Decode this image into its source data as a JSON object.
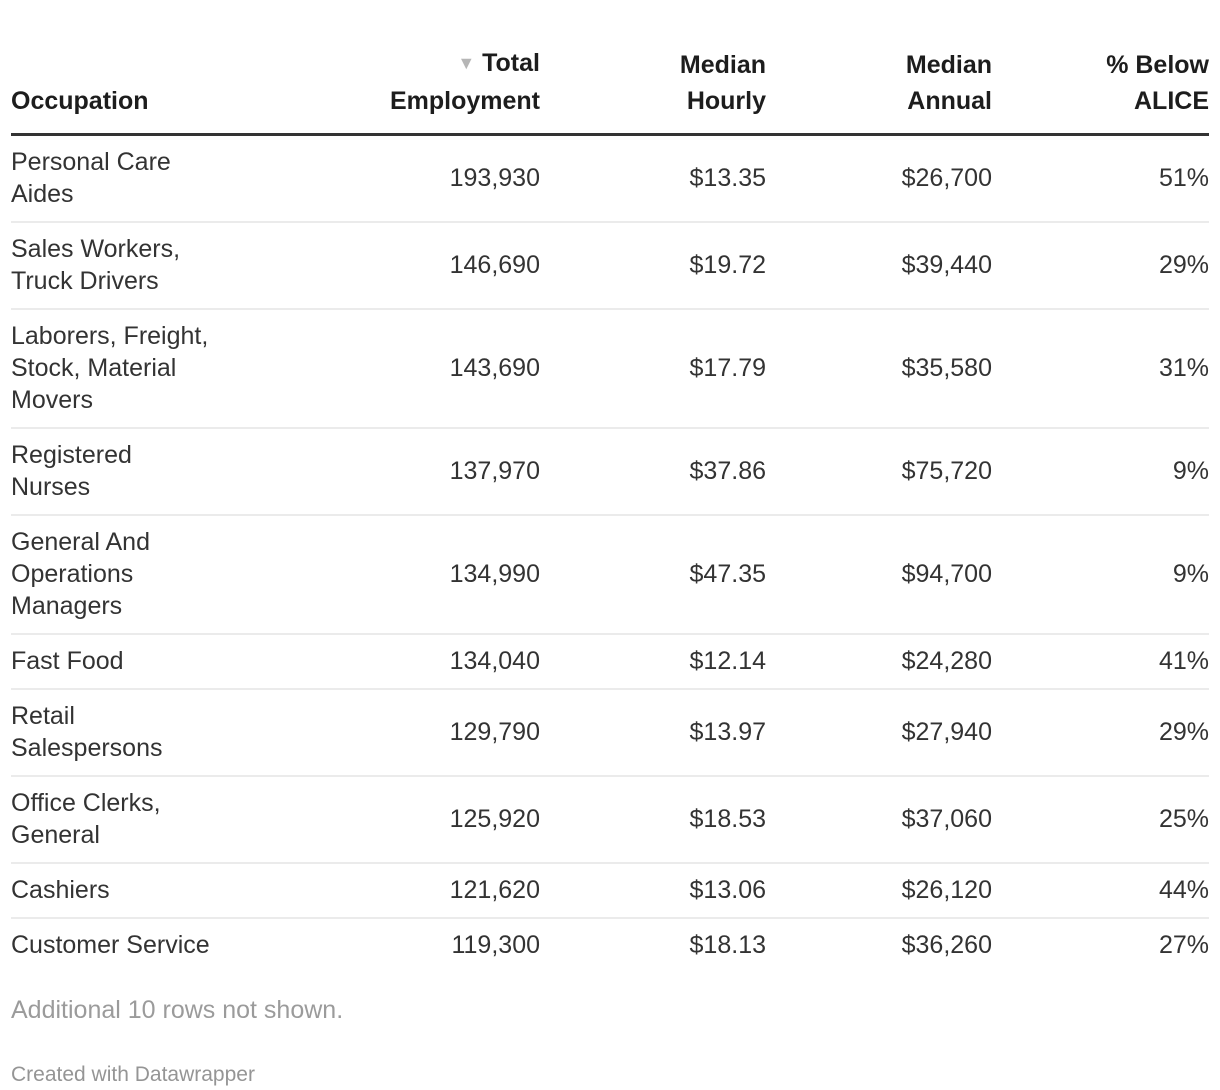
{
  "table": {
    "columns": [
      {
        "key": "occupation",
        "label": "Occupation",
        "align": "left",
        "sorted": false
      },
      {
        "key": "total_employment",
        "label": "Total\nEmployment",
        "align": "right",
        "sorted": true
      },
      {
        "key": "median_hourly",
        "label": "Median\nHourly",
        "align": "right",
        "sorted": false
      },
      {
        "key": "median_annual",
        "label": "Median\nAnnual",
        "align": "right",
        "sorted": false
      },
      {
        "key": "pct_below_alice",
        "label": "% Below\nALICE",
        "align": "right",
        "sorted": false
      }
    ],
    "rows": [
      {
        "occupation": "Personal Care\nAides",
        "total_employment": "193,930",
        "median_hourly": "$13.35",
        "median_annual": "$26,700",
        "pct_below_alice": "51%"
      },
      {
        "occupation": "Sales Workers,\nTruck Drivers",
        "total_employment": "146,690",
        "median_hourly": "$19.72",
        "median_annual": "$39,440",
        "pct_below_alice": "29%"
      },
      {
        "occupation": "Laborers, Freight,\nStock, Material\nMovers",
        "total_employment": "143,690",
        "median_hourly": "$17.79",
        "median_annual": "$35,580",
        "pct_below_alice": "31%"
      },
      {
        "occupation": "Registered\nNurses",
        "total_employment": "137,970",
        "median_hourly": "$37.86",
        "median_annual": "$75,720",
        "pct_below_alice": "9%"
      },
      {
        "occupation": "General And\nOperations\nManagers",
        "total_employment": "134,990",
        "median_hourly": "$47.35",
        "median_annual": "$94,700",
        "pct_below_alice": "9%"
      },
      {
        "occupation": "Fast Food",
        "total_employment": "134,040",
        "median_hourly": "$12.14",
        "median_annual": "$24,280",
        "pct_below_alice": "41%"
      },
      {
        "occupation": "Retail\nSalespersons",
        "total_employment": "129,790",
        "median_hourly": "$13.97",
        "median_annual": "$27,940",
        "pct_below_alice": "29%"
      },
      {
        "occupation": "Office Clerks,\nGeneral",
        "total_employment": "125,920",
        "median_hourly": "$18.53",
        "median_annual": "$37,060",
        "pct_below_alice": "25%"
      },
      {
        "occupation": "Cashiers",
        "total_employment": "121,620",
        "median_hourly": "$13.06",
        "median_annual": "$26,120",
        "pct_below_alice": "44%"
      },
      {
        "occupation": "Customer Service",
        "total_employment": "119,300",
        "median_hourly": "$18.13",
        "median_annual": "$36,260",
        "pct_below_alice": "27%"
      }
    ]
  },
  "notes": {
    "additional_rows": "Additional 10 rows not shown."
  },
  "attribution": "Created with Datawrapper",
  "icons": {
    "sort_desc": "▼"
  },
  "colors": {
    "header_text": "#1d1d1d",
    "body_text": "#333333",
    "header_rule": "#333333",
    "row_divider": "#ebebeb",
    "sort_arrow": "#b6b6b6",
    "note_text": "#9b9b9b",
    "attribution_text": "#959595",
    "background": "#ffffff"
  },
  "chart_data": {
    "type": "table",
    "columns": [
      "Occupation",
      "Total Employment",
      "Median Hourly",
      "Median Annual",
      "% Below ALICE"
    ],
    "sort": {
      "column": "Total Employment",
      "direction": "desc"
    },
    "rows": [
      [
        "Personal Care Aides",
        193930,
        13.35,
        26700,
        51
      ],
      [
        "Sales Workers, Truck Drivers",
        146690,
        19.72,
        39440,
        29
      ],
      [
        "Laborers, Freight, Stock, Material Movers",
        143690,
        17.79,
        35580,
        31
      ],
      [
        "Registered Nurses",
        137970,
        37.86,
        75720,
        9
      ],
      [
        "General And Operations Managers",
        134990,
        47.35,
        94700,
        9
      ],
      [
        "Fast Food",
        134040,
        12.14,
        24280,
        41
      ],
      [
        "Retail Salespersons",
        129790,
        13.97,
        27940,
        29
      ],
      [
        "Office Clerks, General",
        125920,
        18.53,
        37060,
        25
      ],
      [
        "Cashiers",
        121620,
        13.06,
        26120,
        44
      ],
      [
        "Customer Service",
        119300,
        18.13,
        36260,
        27
      ]
    ],
    "notes": "Additional 10 rows not shown."
  }
}
